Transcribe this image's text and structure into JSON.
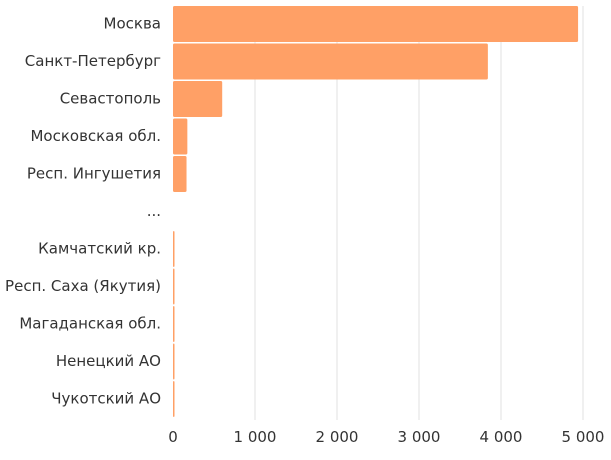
{
  "chart_data": {
    "type": "bar",
    "orientation": "horizontal",
    "categories": [
      "Москва",
      "Санкт-Петербург",
      "Севастополь",
      "Московская обл.",
      "Респ. Ингушетия",
      "...",
      "Камчатский кр.",
      "Респ. Саха (Якутия)",
      "Магаданская обл.",
      "Ненецкий АО",
      "Чукотский АО"
    ],
    "values": [
      4940,
      3840,
      600,
      175,
      165,
      null,
      3,
      3,
      3,
      2,
      2
    ],
    "xlim": [
      0,
      5000
    ],
    "xticks": [
      0,
      1000,
      2000,
      3000,
      4000,
      5000
    ],
    "xtick_labels": [
      "0",
      "1 000",
      "2 000",
      "3 000",
      "4 000",
      "5 000"
    ],
    "bar_color": "#FFA066",
    "grid": true,
    "title": "",
    "xlabel": "",
    "ylabel": ""
  }
}
